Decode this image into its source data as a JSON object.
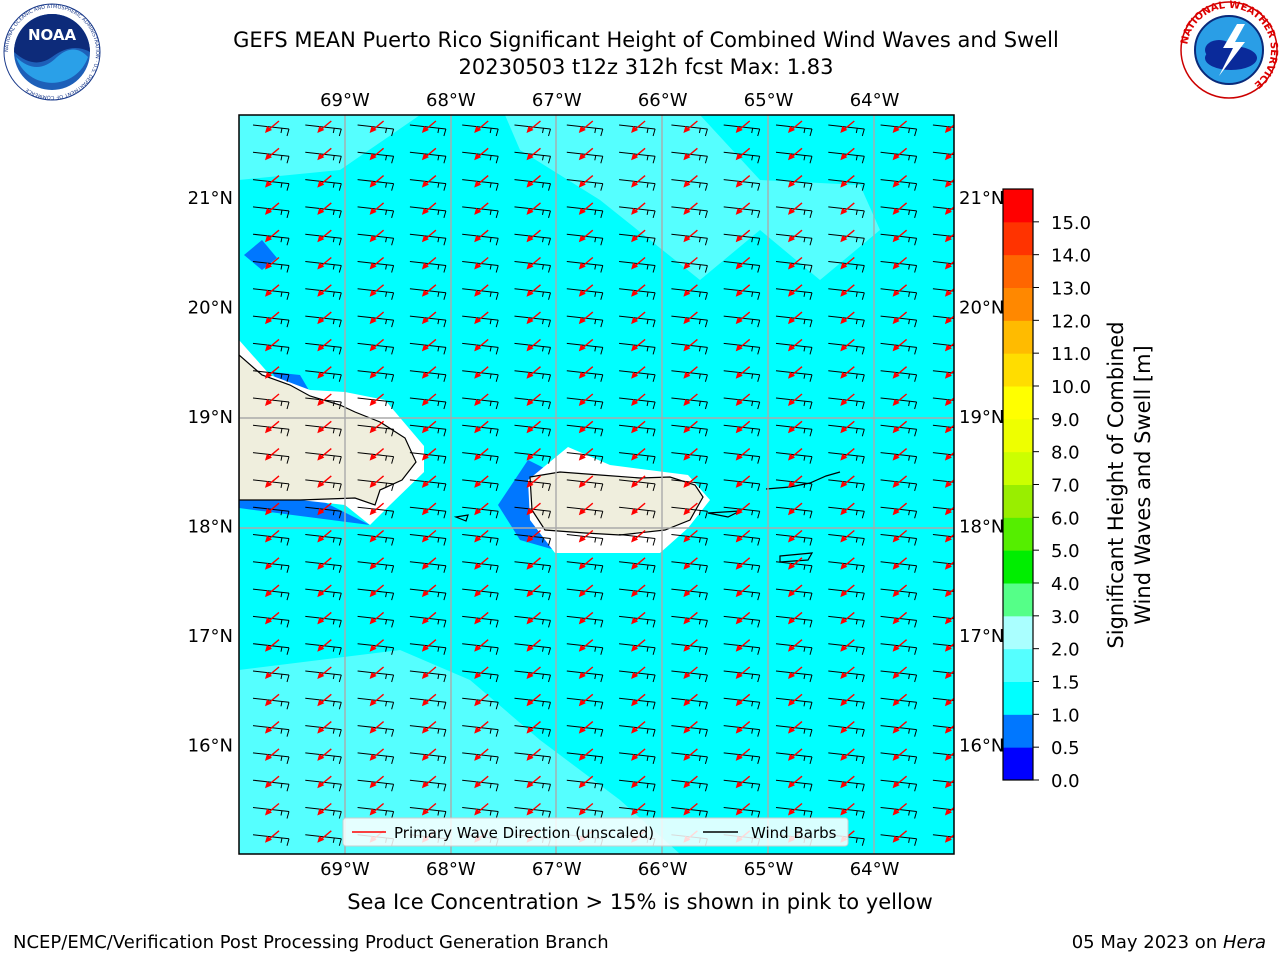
{
  "title": {
    "line1": "GEFS MEAN Puerto Rico Significant Height of Combined Wind Waves and Swell",
    "line2": "20230503 t12z 312h fcst   Max: 1.83"
  },
  "logos": {
    "left": "noaa-logo",
    "left_text": "NOAA",
    "left_ring": "NATIONAL OCEANIC AND ATMOSPHERIC ADMINISTRATION · U.S. DEPARTMENT OF COMMERCE",
    "right": "nws-logo",
    "right_ring": "NATIONAL WEATHER SERVICE"
  },
  "map": {
    "lon_labels": [
      "69°W",
      "68°W",
      "67°W",
      "66°W",
      "65°W",
      "64°W"
    ],
    "lat_labels": [
      "21°N",
      "20°N",
      "19°N",
      "18°N",
      "17°N",
      "16°N"
    ],
    "lon_range": [
      -70,
      -63.25
    ],
    "lat_range": [
      15,
      21.75
    ],
    "legend": {
      "wave_label": "Primary Wave Direction (unscaled)",
      "barb_label": "Wind Barbs",
      "wave_color": "#ff0000",
      "barb_color": "#000000"
    },
    "land_color": "#efeedd",
    "ocean_dominant_bin": "1.5-2.0"
  },
  "colorbar": {
    "label_line1": "Significant Height of Combined",
    "label_line2": "Wind Waves and Swell [m]",
    "ticks": [
      "0.0",
      "0.5",
      "1.0",
      "1.5",
      "2.0",
      "3.0",
      "4.0",
      "5.0",
      "6.0",
      "7.0",
      "8.0",
      "9.0",
      "10.0",
      "11.0",
      "12.0",
      "13.0",
      "14.0",
      "15.0"
    ],
    "colors": [
      "#0000ff",
      "#0077ff",
      "#00ffff",
      "#55ffff",
      "#aaffff",
      "#55ff88",
      "#00ee00",
      "#55ee00",
      "#99ee00",
      "#ccff00",
      "#eeff00",
      "#ffff00",
      "#ffdd00",
      "#ffbb00",
      "#ff8800",
      "#ff6600",
      "#ff3300",
      "#ff0000"
    ]
  },
  "subtitle": "Sea Ice Concentration > 15% is shown in pink to yellow",
  "footer": {
    "left": "NCEP/EMC/Verification Post Processing Product Generation Branch",
    "right_date": "05 May 2023 on ",
    "right_host": "Hera"
  }
}
